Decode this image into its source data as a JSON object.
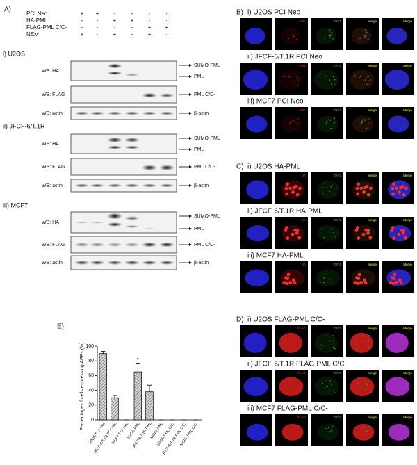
{
  "figure": {
    "panel_labels": {
      "A": "A)",
      "B": "B)",
      "C": "C)",
      "D": "D)",
      "E": "E)"
    },
    "treatments": [
      {
        "label": "PCI Neo",
        "marks": [
          "+",
          "+",
          "-",
          "-",
          "-",
          "-"
        ]
      },
      {
        "label": "HA-PML",
        "marks": [
          "-",
          "-",
          "+",
          "+",
          "-",
          "-"
        ]
      },
      {
        "label": "FLAG-PML C/C-",
        "marks": [
          "-",
          "-",
          "-",
          "-",
          "+",
          "+"
        ]
      },
      {
        "label": "NEM",
        "marks": [
          "+",
          "-",
          "+",
          "-",
          "+",
          "-"
        ]
      }
    ],
    "blots": [
      {
        "cell_line": "i) U2OS",
        "rows": [
          {
            "antibody": "WB: HA",
            "bands": [
              "SUMO-PML",
              "PML"
            ]
          },
          {
            "antibody": "WB: FLAG",
            "bands": [
              "PML C/C-"
            ]
          },
          {
            "antibody": "WB: actin",
            "bands": [
              "β-actin"
            ]
          }
        ]
      },
      {
        "cell_line": "ii) JFCF-6/T.1R",
        "rows": [
          {
            "antibody": "WB: HA",
            "bands": [
              "SUMO-PML",
              "PML"
            ]
          },
          {
            "antibody": "WB: FLAG",
            "bands": [
              "PML C/C-"
            ]
          },
          {
            "antibody": "WB: actin",
            "bands": [
              "β-actin"
            ]
          }
        ]
      },
      {
        "cell_line": "iii) MCF7",
        "rows": [
          {
            "antibody": "WB: HA",
            "bands": [
              "SUMO-PML",
              "PML"
            ]
          },
          {
            "antibody": "WB: FLAG",
            "bands": [
              "PML C/C-"
            ]
          },
          {
            "antibody": "WB: actin",
            "bands": [
              "β-actin"
            ]
          }
        ]
      }
    ],
    "microscopy": [
      {
        "channels": [
          "PML",
          "TRF2",
          "Merge"
        ],
        "rows": [
          "i) U2OS PCI Neo",
          "ii) JFCF-6/T.1R PCI Neo",
          "iii) MCF7 PCI Neo"
        ]
      },
      {
        "channels": [
          "HA",
          "TRF2",
          "Merge"
        ],
        "rows": [
          "i) U2OS HA-PML",
          "ii) JFCF-6/T.1R HA-PML",
          "iii) MCF7 HA-PML"
        ]
      },
      {
        "channels": [
          "FLAG",
          "TRF2",
          "Merge"
        ],
        "rows": [
          "i) U2OS FLAG-PML C/C-",
          "ii) JFCF-6/T.1R FLAG-PML C/C-",
          "iii) MCF7 FLAG-PML C/C-"
        ]
      }
    ]
  },
  "chart_data": {
    "type": "bar",
    "ylabel": "Percentage of cells expressing APBs (%)",
    "categories": [
      "U2OS PCI Neo",
      "JFCF-6/T.1R PCI Neo",
      "MCF7 PCI Neo",
      "U2OS PML",
      "JFCF-6/T.1R PML",
      "MCF7 PML",
      "U2OS PML C/C-",
      "JFCF-6/T.1R PML C/C-",
      "MCF7 PML C/C-"
    ],
    "values": [
      90,
      30,
      0,
      65,
      38,
      0,
      0,
      0,
      0
    ],
    "errors": [
      3,
      3,
      0,
      12,
      9,
      0,
      0,
      0,
      0
    ],
    "ylim": [
      0,
      100
    ],
    "yticks": [
      0,
      20,
      40,
      60,
      80,
      100
    ],
    "annotations": [
      {
        "text": "*",
        "category": "U2OS PML"
      }
    ]
  }
}
